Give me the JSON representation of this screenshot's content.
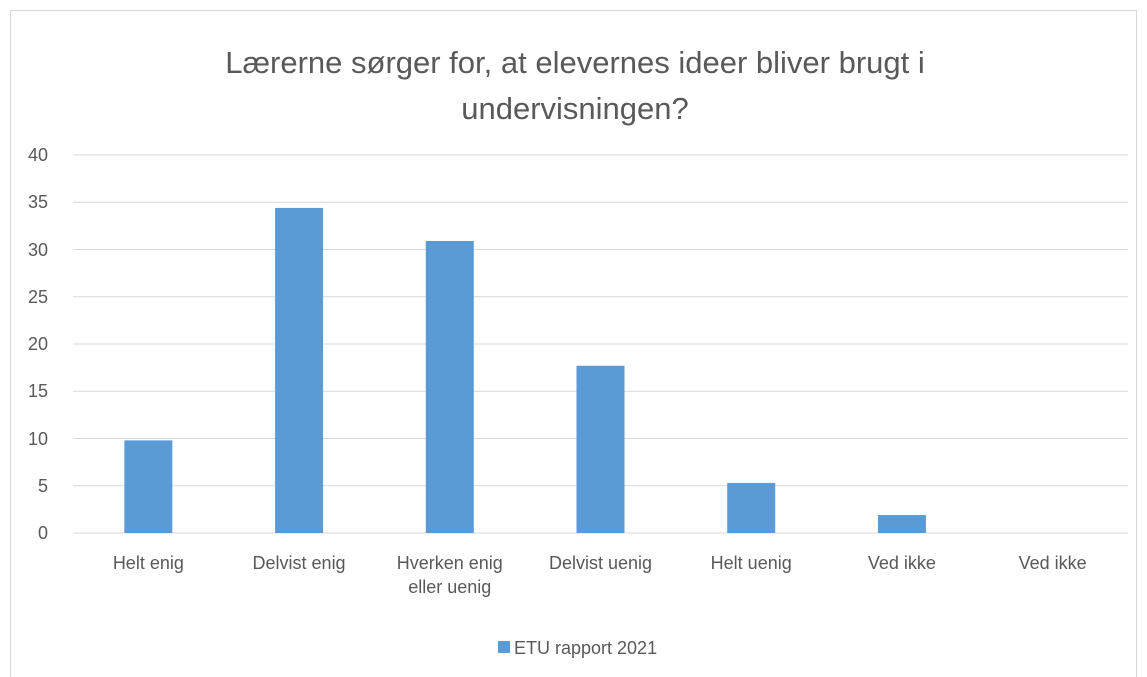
{
  "chart_data": {
    "type": "bar",
    "title": "Lærerne sørger for, at elevernes ideer bliver brugt i undervisningen?",
    "categories": [
      "Helt enig",
      "Delvist enig",
      "Hverken enig eller uenig",
      "Delvist uenig",
      "Helt uenig",
      "Ved ikke",
      "Ved ikke"
    ],
    "series": [
      {
        "name": "ETU rapport 2021",
        "color": "#5b9bd5",
        "values": [
          9.8,
          34.4,
          30.9,
          17.7,
          5.3,
          1.9,
          0
        ]
      }
    ],
    "ylim": [
      0,
      40
    ],
    "yticks": [
      0,
      5,
      10,
      15,
      20,
      25,
      30,
      35,
      40
    ],
    "grid": true,
    "legend": "bottom"
  }
}
